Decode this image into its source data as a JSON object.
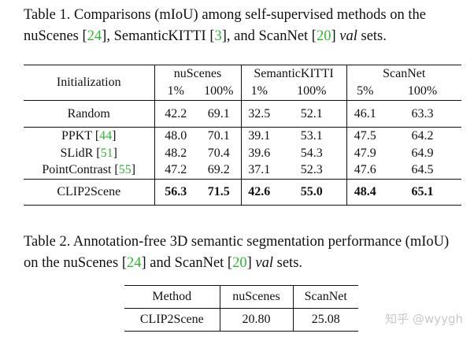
{
  "table1": {
    "caption_prefix": "Table 1. Comparisons (mIoU) among self-supervised methods on the nuScenes [",
    "cite_nuscenes": "24",
    "caption_mid1": "], SemanticKITTI [",
    "cite_kitti": "3",
    "caption_mid2": "], and ScanNet [",
    "cite_scannet": "20",
    "caption_mid3": "] ",
    "caption_val": "val",
    "caption_end": " sets.",
    "header": {
      "initialization": "Initialization",
      "datasets": [
        "nuScenes",
        "SemanticKITTI",
        "ScanNet"
      ],
      "splits": [
        "1%",
        "100%",
        "1%",
        "100%",
        "5%",
        "100%"
      ]
    },
    "rows": [
      {
        "name": "Random",
        "cite": "",
        "values": [
          "42.2",
          "69.1",
          "32.5",
          "52.1",
          "46.1",
          "63.3"
        ]
      },
      {
        "name": "PPKT [",
        "cite": "44",
        "values": [
          "48.0",
          "70.1",
          "39.1",
          "53.1",
          "47.5",
          "64.2"
        ]
      },
      {
        "name": "SLidR [",
        "cite": "51",
        "values": [
          "48.2",
          "70.4",
          "39.6",
          "54.3",
          "47.9",
          "64.9"
        ]
      },
      {
        "name": "PointContrast [",
        "cite": "55",
        "values": [
          "47.2",
          "69.2",
          "37.1",
          "52.3",
          "47.6",
          "64.5"
        ]
      },
      {
        "name": "CLIP2Scene",
        "cite": "",
        "values": [
          "56.3",
          "71.5",
          "42.6",
          "55.0",
          "48.4",
          "65.1"
        ]
      }
    ]
  },
  "table2": {
    "caption_prefix": "Table 2. Annotation-free 3D semantic segmentation performance (mIoU) on the nuScenes [",
    "cite_nuscenes": "24",
    "caption_mid": "] and ScanNet [",
    "cite_scannet": "20",
    "caption_mid2": "] ",
    "caption_val": "val",
    "caption_end": " sets.",
    "header": [
      "Method",
      "nuScenes",
      "ScanNet"
    ],
    "row": [
      "CLIP2Scene",
      "20.80",
      "25.08"
    ]
  },
  "watermark": "知乎 @wyygh"
}
